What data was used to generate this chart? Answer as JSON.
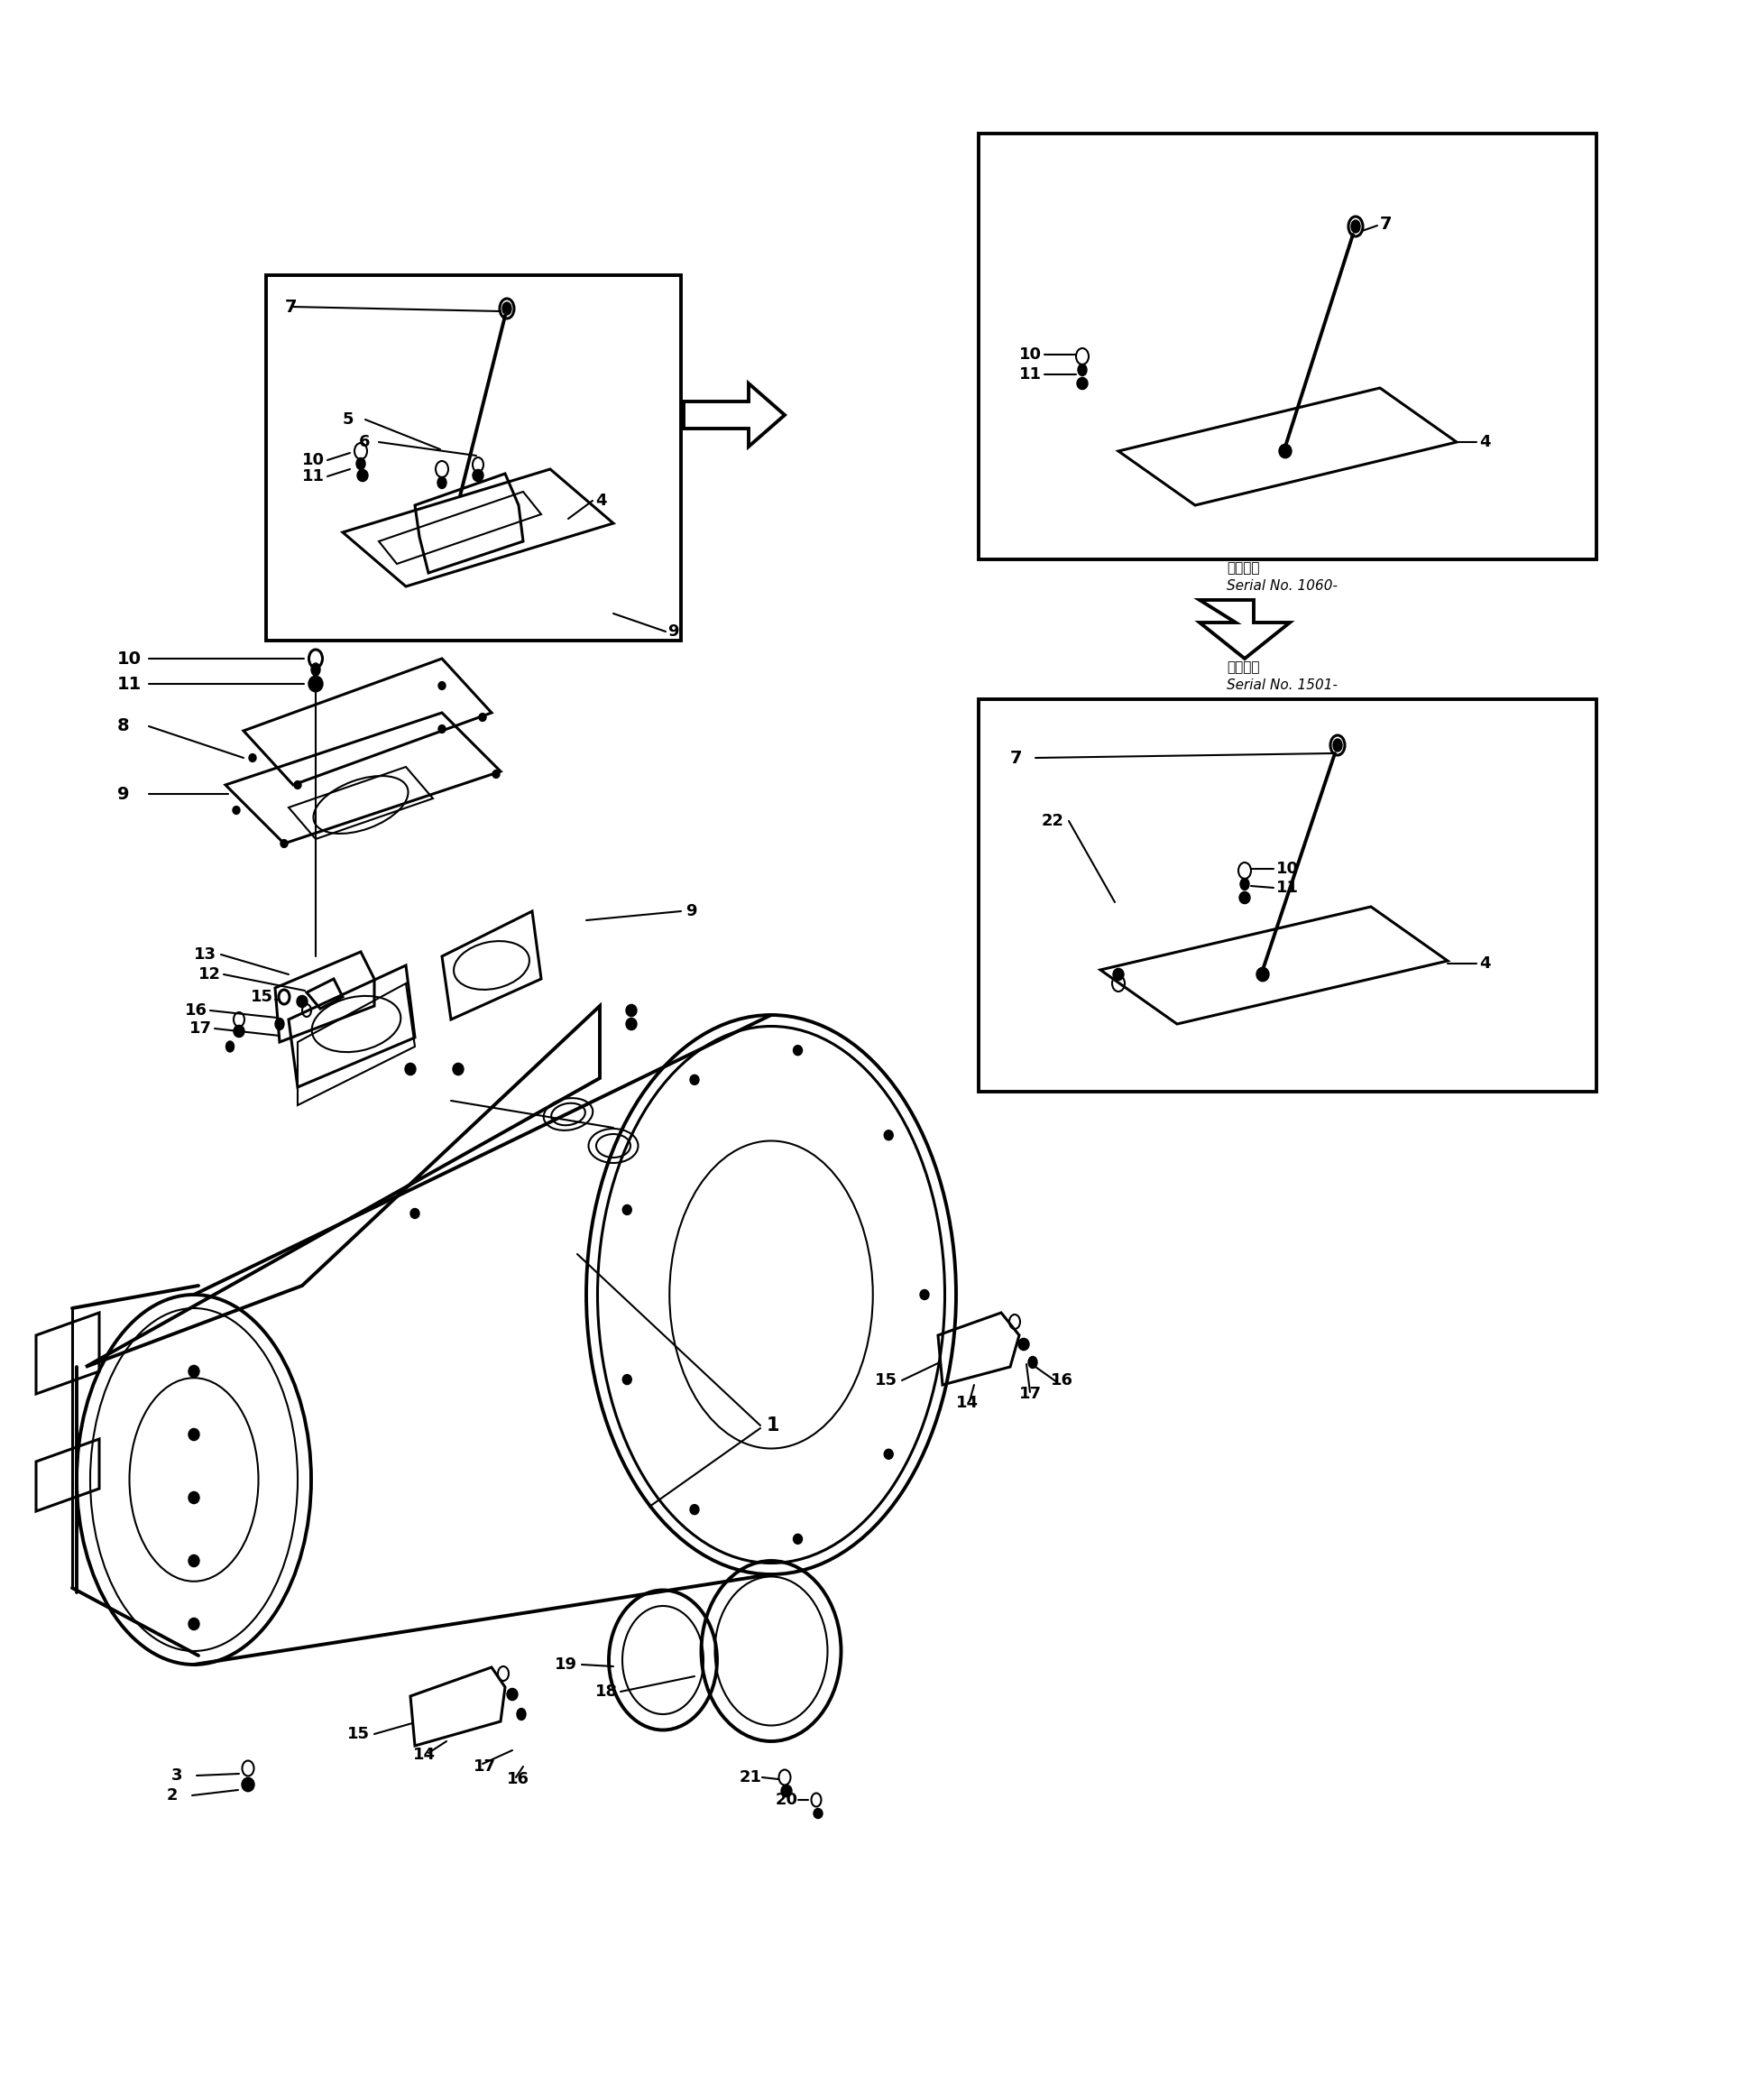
{
  "bg": "#ffffff",
  "lc": "#000000",
  "fw": 19.48,
  "fh": 23.11,
  "dpi": 100,
  "serial1": [
    "適用号番",
    "Serial No. 1060-"
  ],
  "serial2": [
    "適用号番",
    "Serial No. 1501-"
  ]
}
